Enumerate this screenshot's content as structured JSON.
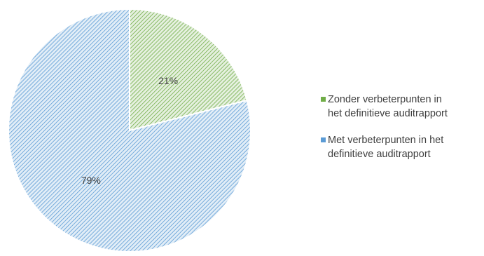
{
  "chart_data": {
    "type": "pie",
    "title": "",
    "start_angle_deg": 0,
    "direction": "clockwise",
    "hatched": true,
    "legend_position": "right",
    "slices": [
      {
        "label": "Zonder verbeterpunten in het definitieve auditrapport",
        "value": 21,
        "display": "21%",
        "color": "#70ad47"
      },
      {
        "label": "Met verbeterpunten in het definitieve auditrapport",
        "value": 79,
        "display": "79%",
        "color": "#5b9bd5"
      }
    ],
    "legend": [
      {
        "lines": [
          "Zonder verbeterpunten in",
          "het definitieve auditrapport"
        ],
        "color": "#70ad47"
      },
      {
        "lines": [
          "Met verbeterpunten in het",
          "definitieve auditrapport"
        ],
        "color": "#5b9bd5"
      }
    ]
  }
}
